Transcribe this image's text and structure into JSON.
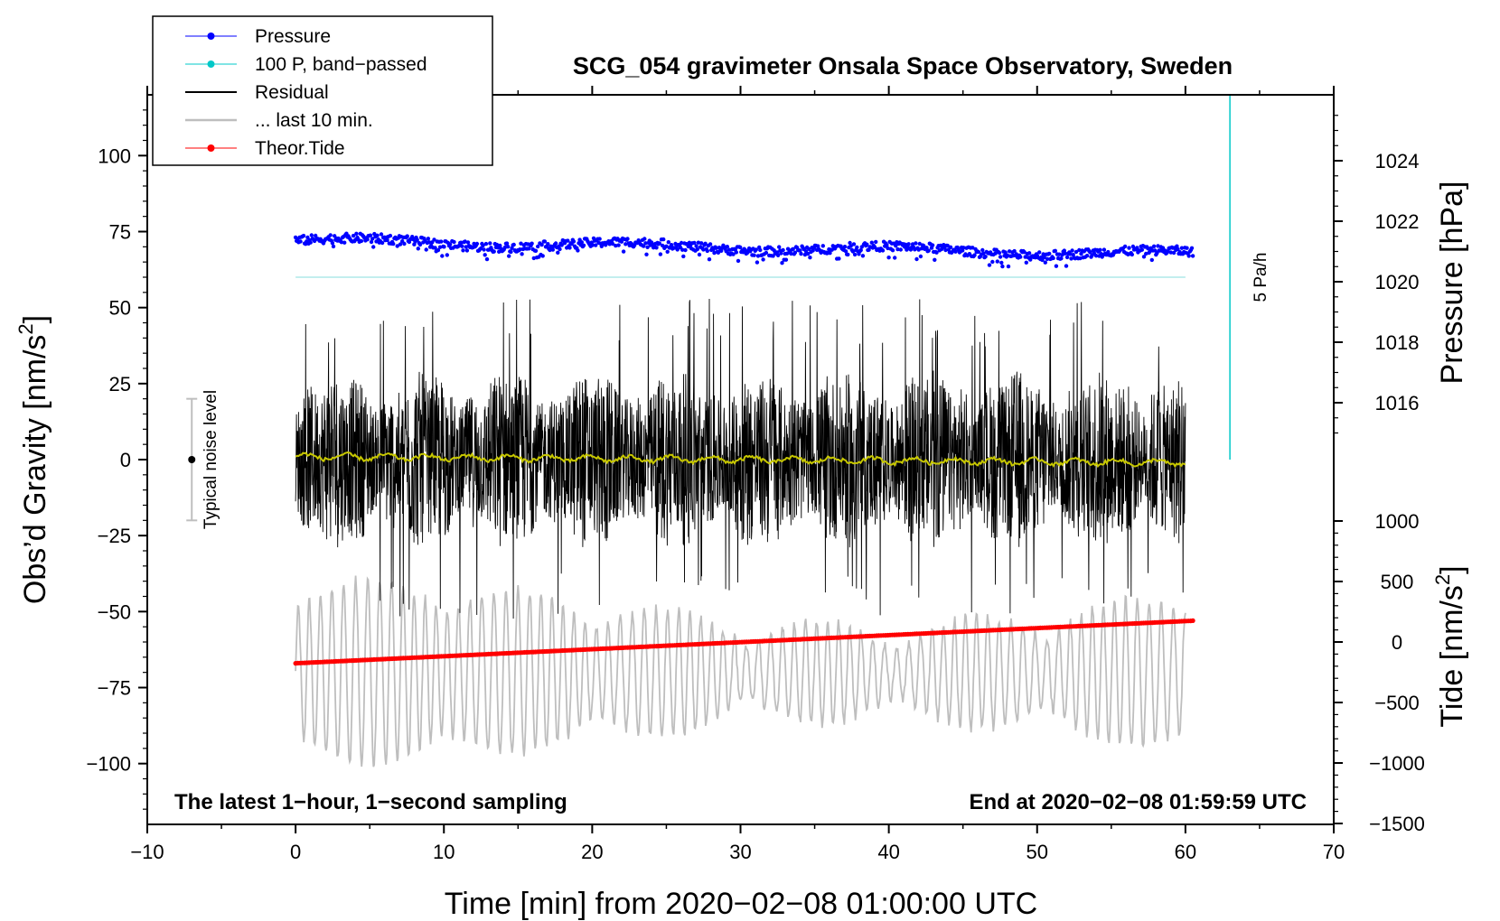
{
  "chart_data": {
    "type": "line",
    "title": "SCG_054 gravimeter Onsala Space Observatory, Sweden",
    "xlabel": "Time [min] from 2020−02−08 01:00:00 UTC",
    "ylabel_left_prefix": "Obs’d Gravity [nm/s",
    "ylabel_left_sup": "2",
    "ylabel_left_suffix": "]",
    "ylabel_right_top": "Pressure [hPa]",
    "ylabel_right_bottom_prefix": "Tide [nm/s",
    "ylabel_right_bottom_sup": "2",
    "ylabel_right_bottom_suffix": "]",
    "xlim": [
      -10,
      70
    ],
    "ylim": [
      -120,
      120
    ],
    "x_ticks": [
      "−10",
      "0",
      "10",
      "20",
      "30",
      "40",
      "50",
      "60",
      "70"
    ],
    "x_tick_values": [
      -10,
      0,
      10,
      20,
      30,
      40,
      50,
      60,
      70
    ],
    "y_ticks": [
      "100",
      "75",
      "50",
      "25",
      "0",
      "−25",
      "−50",
      "−75",
      "−100"
    ],
    "y_tick_values": [
      100,
      75,
      50,
      25,
      0,
      -25,
      -50,
      -75,
      -100
    ],
    "pressure_ticks": [
      "1024",
      "1022",
      "1020",
      "1018",
      "1016"
    ],
    "pressure_tick_values": [
      1024,
      1022,
      1020,
      1018,
      1016
    ],
    "tide_ticks": [
      "1000",
      "500",
      "0",
      "−500",
      "−1000",
      "−1500"
    ],
    "tide_tick_values": [
      1000,
      500,
      0,
      -500,
      -1000,
      -1500
    ],
    "legend": [
      {
        "label": "Pressure",
        "color": "#0000ff",
        "marker": true
      },
      {
        "label": "100 P, band−passed",
        "color": "#00c8c8",
        "marker": true
      },
      {
        "label": "Residual",
        "color": "#000000",
        "marker": false
      },
      {
        "label": "... last 10 min.",
        "color": "#bebebe",
        "marker": false
      },
      {
        "label": "Theor.Tide",
        "color": "#ff0000",
        "marker": true
      }
    ],
    "series": [
      {
        "name": "Pressure",
        "color": "#0000ff",
        "x_range": [
          0,
          60.5
        ],
        "y_start": 72,
        "y_end": 67.5,
        "scatter": 1.5
      },
      {
        "name": "100 P, band−passed",
        "color": "#afe8e8",
        "x_range": [
          0,
          60
        ],
        "y": 60
      },
      {
        "name": "Residual",
        "color": "#000000",
        "x_range": [
          0,
          60
        ],
        "typical_amplitude": 30,
        "max_amplitude": 53
      },
      {
        "name": "Residual smoothed",
        "color": "#c8c800",
        "x_range": [
          0,
          60
        ],
        "y_start": 1,
        "y_end": -1
      },
      {
        "name": "... last 10 min.",
        "color": "#bebebe",
        "x_range": [
          0,
          60
        ],
        "center": -70,
        "amplitude": 20
      },
      {
        "name": "Theor.Tide",
        "color": "#ff0000",
        "x_range": [
          0,
          60.5
        ],
        "y_start": -67,
        "y_end": -53
      }
    ],
    "noise_bar": {
      "x": -7,
      "y": 0,
      "half_range": 20,
      "label": "Typical noise level"
    },
    "scale_bar": {
      "x": 63,
      "y_top": 120,
      "y_bottom": 0,
      "label": "5 Pa/h"
    },
    "annotation_left": "The latest 1−hour, 1−second sampling",
    "annotation_right": "End at 2020−02−08 01:59:59 UTC"
  },
  "colors": {
    "pressure": "#0000ff",
    "bandpassed": "#afe8e8",
    "residual": "#000000",
    "smoothed": "#c8c800",
    "last10": "#bebebe",
    "tide": "#ff0000",
    "noise": "#bebebe",
    "scale": "#00c8c8"
  }
}
